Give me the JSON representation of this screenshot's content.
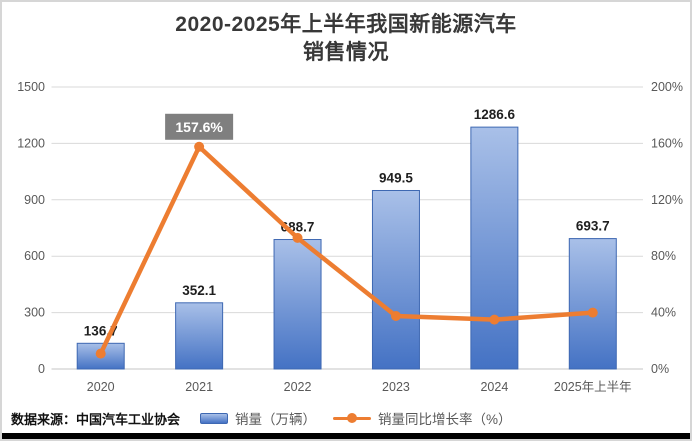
{
  "title": {
    "line1": "2020-2025年上半年我国新能源汽车",
    "line2": "销售情况"
  },
  "source": "数据来源：中国汽车工业协会",
  "legend": [
    {
      "label": "销量（万辆）",
      "marker": "bar-swatch"
    },
    {
      "label": "销量同比增长率（%）",
      "marker": "line-dot-swatch"
    }
  ],
  "colors": {
    "bar_top": "#a9c0e8",
    "bar_bottom": "#4472c4",
    "bar_border": "#3e68b2",
    "line": "#ed7d31",
    "grid": "#d9d9d9",
    "axis_line": "#c6c6c6",
    "tick_text": "#595959",
    "bar_label_text": "#1f1f1f",
    "annotation_bg": "#7f7f7f",
    "annotation_text": "#ffffff"
  },
  "chart_data": {
    "type": "bar",
    "subtype": "combo-bar-line-dual-axis",
    "title": "2020-2025年上半年我国新能源汽车销售情况",
    "categories": [
      "2020",
      "2021",
      "2022",
      "2023",
      "2024",
      "2025年上半年"
    ],
    "series": [
      {
        "name": "销量（万辆）",
        "type": "bar",
        "axis": "left",
        "values": [
          136.7,
          352.1,
          688.7,
          949.5,
          1286.6,
          693.7
        ],
        "data_labels": [
          "136.7",
          "352.1",
          "688.7",
          "949.5",
          "1286.6",
          "693.7"
        ]
      },
      {
        "name": "销量同比增长率（%）",
        "type": "line",
        "axis": "right",
        "values": [
          10.9,
          157.6,
          93.0,
          37.6,
          35.0,
          40.0
        ],
        "point_labels": {
          "1": "157.6%"
        }
      }
    ],
    "left_axis": {
      "min": 0,
      "max": 1500,
      "step": 300,
      "ticks": [
        "0",
        "300",
        "600",
        "900",
        "1200",
        "1500"
      ]
    },
    "right_axis": {
      "min": 0,
      "max": 200,
      "step": 40,
      "ticks": [
        "0%",
        "40%",
        "80%",
        "120%",
        "160%",
        "200%"
      ]
    },
    "grid": "horizontal",
    "legend_position": "bottom"
  }
}
